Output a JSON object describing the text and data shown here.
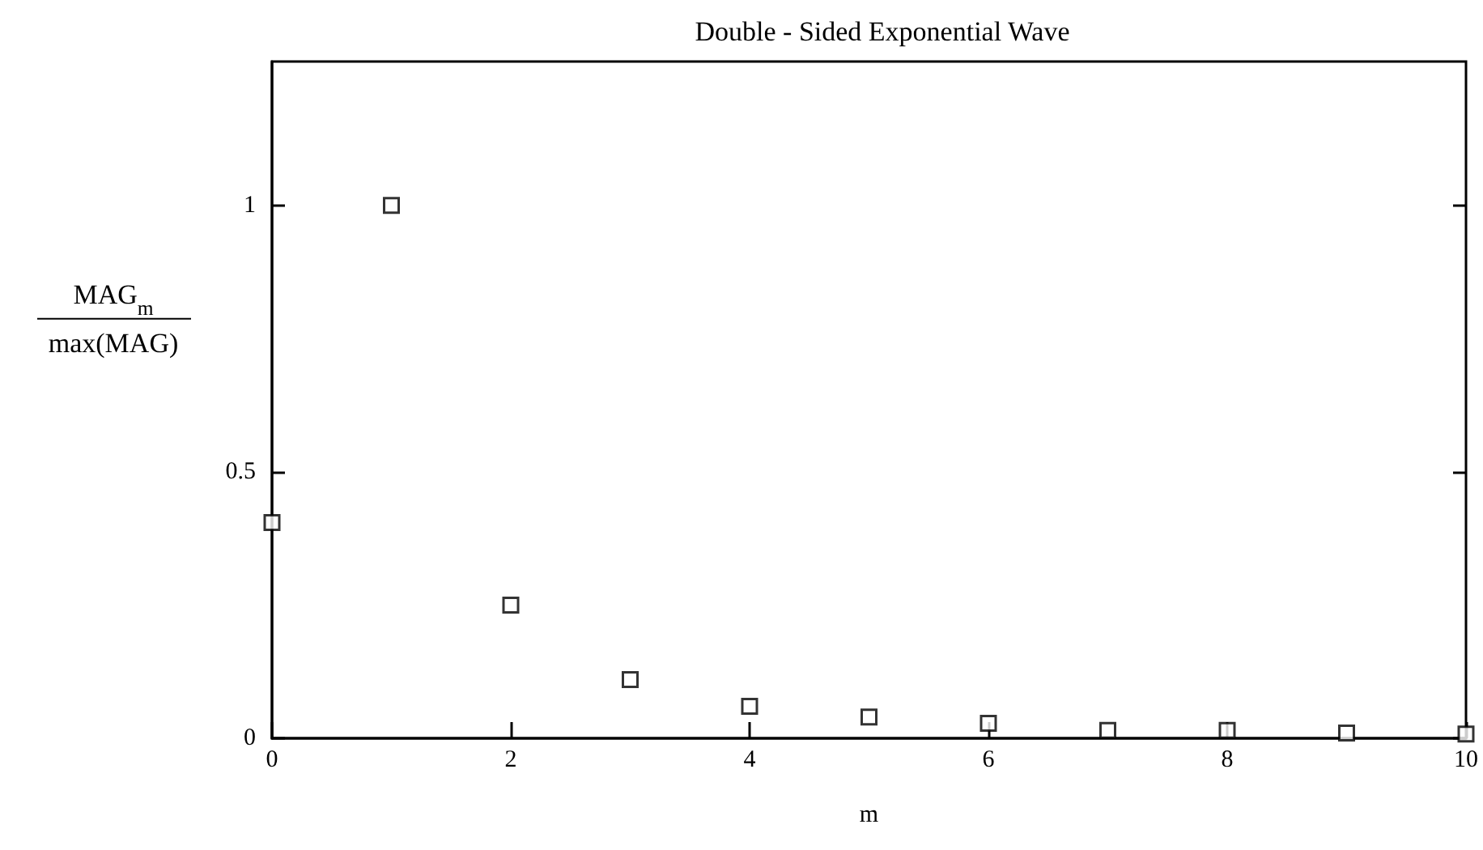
{
  "chart_data": {
    "type": "scatter",
    "title": "Double - Sided Exponential Wave",
    "xlabel": "m",
    "ylabel": "MAG$_{m}$\nmax(MAG)",
    "x": [
      0,
      1,
      2,
      3,
      4,
      5,
      6,
      7,
      8,
      9,
      10
    ],
    "values": [
      0.405,
      1.0,
      0.25,
      0.11,
      0.06,
      0.04,
      0.028,
      0.015,
      0.015,
      0.01,
      0.008
    ],
    "color": "#000000",
    "marker": "square",
    "xlim": [
      0,
      10
    ],
    "xticks": [
      0,
      2,
      4,
      6,
      8,
      10
    ],
    "ylim": [
      0,
      1.27
    ],
    "yticks": [
      0,
      0.5,
      1
    ],
    "grid": false
  }
}
